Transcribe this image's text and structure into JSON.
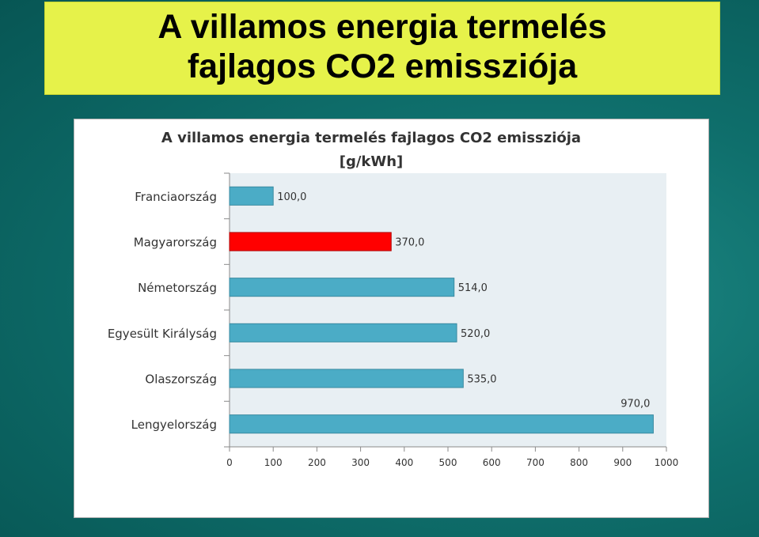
{
  "slide": {
    "title_line1": "A villamos energia termelés",
    "title_line2": "fajlagos CO2 emissziója"
  },
  "colors": {
    "slide_background": "#0f6f6c",
    "title_box": "#e6f24a",
    "plot_area": "#e8eff3",
    "bar_default": "#4bacc6",
    "bar_highlight": "#ff0000"
  },
  "chart_data": {
    "type": "bar",
    "orientation": "horizontal",
    "title_line1": "A villamos energia termelés fajlagos CO2 emissziója",
    "title_line2": "[g/kWh]",
    "categories": [
      "Franciaország",
      "Magyarország",
      "Németország",
      "Egyesült Királyság",
      "Olaszország",
      "Lengyelország"
    ],
    "values": [
      100,
      370,
      514,
      520,
      535,
      970
    ],
    "value_labels": [
      "100,0",
      "370,0",
      "514,0",
      "520,0",
      "535,0",
      "970,0"
    ],
    "highlight_category": "Magyarország",
    "xlim": [
      0,
      1000
    ],
    "x_ticks": [
      0,
      100,
      200,
      300,
      400,
      500,
      600,
      700,
      800,
      900,
      1000
    ],
    "xlabel": "",
    "ylabel": "",
    "grid": false,
    "legend": "none"
  }
}
